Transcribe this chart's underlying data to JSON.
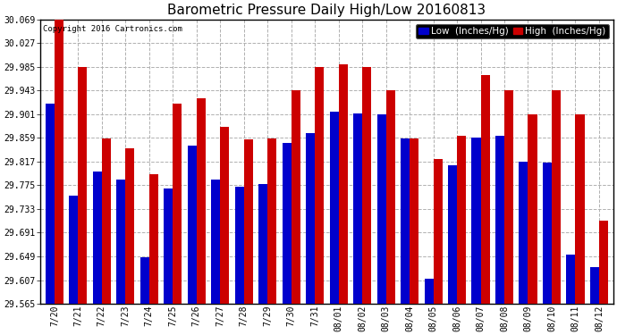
{
  "title": "Barometric Pressure Daily High/Low 20160813",
  "copyright": "Copyright 2016 Cartronics.com",
  "ylabel_low": "Low  (Inches/Hg)",
  "ylabel_high": "High  (Inches/Hg)",
  "dates": [
    "7/20",
    "7/21",
    "7/22",
    "7/23",
    "7/24",
    "7/25",
    "7/26",
    "7/27",
    "7/28",
    "7/29",
    "7/30",
    "7/31",
    "08/01",
    "08/02",
    "08/03",
    "08/04",
    "08/05",
    "08/06",
    "08/07",
    "08/08",
    "08/09",
    "08/10",
    "08/11",
    "08/12"
  ],
  "low_values": [
    29.92,
    29.757,
    29.8,
    29.785,
    29.648,
    29.77,
    29.845,
    29.785,
    29.773,
    29.777,
    29.85,
    29.868,
    29.906,
    29.902,
    29.901,
    29.858,
    29.609,
    29.81,
    29.86,
    29.862,
    29.817,
    29.815,
    29.652,
    29.63
  ],
  "high_values": [
    30.069,
    29.985,
    29.858,
    29.84,
    29.795,
    29.92,
    29.93,
    29.878,
    29.857,
    29.858,
    29.943,
    29.985,
    29.99,
    29.985,
    29.943,
    29.858,
    29.822,
    29.862,
    29.97,
    29.943,
    29.901,
    29.943,
    29.901,
    29.712
  ],
  "low_color": "#0000cc",
  "high_color": "#cc0000",
  "bg_color": "#ffffff",
  "grid_color": "#b0b0b0",
  "ymin": 29.565,
  "ymax": 30.069,
  "yticks": [
    29.565,
    29.607,
    29.649,
    29.691,
    29.733,
    29.775,
    29.817,
    29.859,
    29.901,
    29.943,
    29.985,
    30.027,
    30.069
  ],
  "title_fontsize": 11,
  "tick_fontsize": 7,
  "legend_fontsize": 7.5,
  "bar_width": 0.38
}
